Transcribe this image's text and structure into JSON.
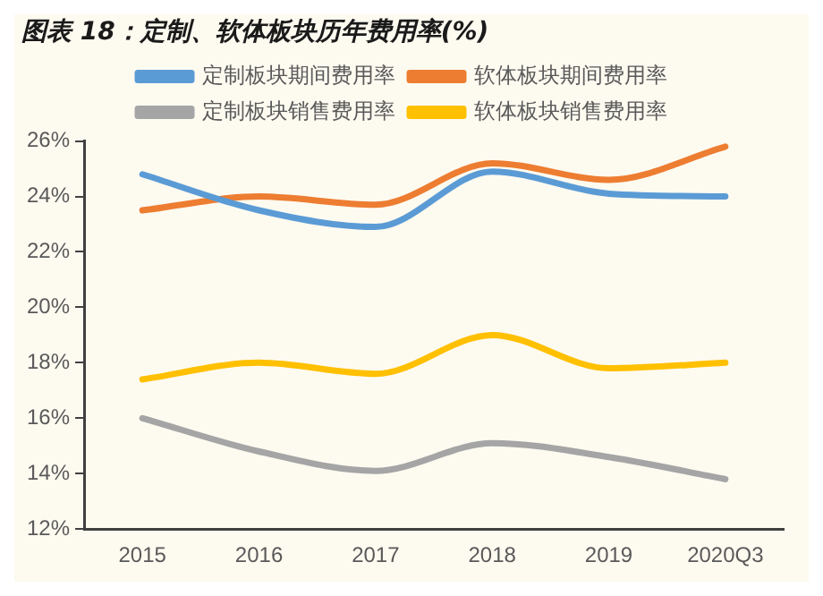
{
  "chart_data": {
    "type": "line",
    "title": "图表 18：定制、软体板块历年费用率(%)",
    "categories": [
      "2015",
      "2016",
      "2017",
      "2018",
      "2019",
      "2020Q3"
    ],
    "series": [
      {
        "name": "定制板块期间费用率",
        "color": "#5b9bd5",
        "values": [
          24.8,
          23.5,
          22.9,
          24.9,
          24.1,
          24.0
        ]
      },
      {
        "name": "软体板块期间费用率",
        "color": "#ed7d31",
        "values": [
          23.5,
          24.0,
          23.7,
          25.2,
          24.6,
          25.8
        ]
      },
      {
        "name": "定制板块销售费用率",
        "color": "#a5a5a5",
        "values": [
          16.0,
          14.8,
          14.1,
          15.1,
          14.6,
          13.8
        ]
      },
      {
        "name": "软体板块销售费用率",
        "color": "#ffc000",
        "values": [
          17.4,
          18.0,
          17.6,
          19.0,
          17.8,
          18.0
        ]
      }
    ],
    "ylim": [
      12,
      26
    ],
    "yticks": [
      {
        "value": 12,
        "label": "12%"
      },
      {
        "value": 14,
        "label": "14%"
      },
      {
        "value": 16,
        "label": "16%"
      },
      {
        "value": 18,
        "label": "18%"
      },
      {
        "value": 20,
        "label": "20%"
      },
      {
        "value": 22,
        "label": "22%"
      },
      {
        "value": 24,
        "label": "24%"
      },
      {
        "value": 26,
        "label": "26%"
      }
    ],
    "grid": false,
    "legend": "top",
    "marker": "none",
    "line_style": "solid"
  }
}
